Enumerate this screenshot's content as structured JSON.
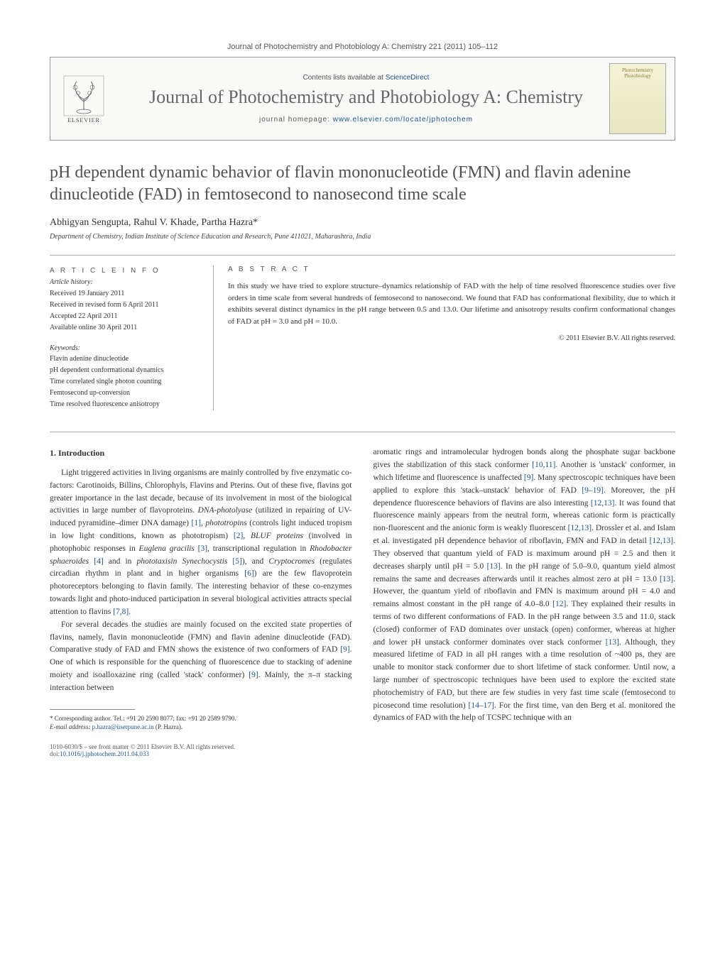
{
  "header": {
    "citation": "Journal of Photochemistry and Photobiology A: Chemistry 221 (2011) 105–112",
    "contents_prefix": "Contents lists available at ",
    "contents_link": "ScienceDirect",
    "journal_name": "Journal of Photochemistry and Photobiology A: Chemistry",
    "homepage_prefix": "journal homepage: ",
    "homepage_url": "www.elsevier.com/locate/jphotochem",
    "publisher": "ELSEVIER",
    "cover_line1": "Photochemistry",
    "cover_line2": "Photobiology"
  },
  "article": {
    "title": "pH dependent dynamic behavior of flavin mononucleotide (FMN) and flavin adenine dinucleotide (FAD) in femtosecond to nanosecond time scale",
    "authors": "Abhigyan Sengupta, Rahul V. Khade, Partha Hazra*",
    "affiliation": "Department of Chemistry, Indian Institute of Science Education and Research, Pune 411021, Maharashtra, India"
  },
  "meta": {
    "info_heading": "A R T I C L E   I N F O",
    "history_label": "Article history:",
    "received": "Received 19 January 2011",
    "revised": "Received in revised form 6 April 2011",
    "accepted": "Accepted 22 April 2011",
    "online": "Available online 30 April 2011",
    "keywords_label": "Keywords:",
    "kw1": "Flavin adenine dinucleotide",
    "kw2": "pH dependent conformational dynamics",
    "kw3": "Time correlated single photon counting",
    "kw4": "Femtosecond up-conversion",
    "kw5": "Time resolved fluorescence anisotropy",
    "abstract_heading": "A B S T R A C T",
    "abstract_text": "In this study we have tried to explore structure–dynamics relationship of FAD with the help of time resolved fluorescence studies over five orders in time scale from several hundreds of femtosecond to nanosecond. We found that FAD has conformational flexibility, due to which it exhibits several distinct dynamics in the pH range between 0.5 and 13.0. Our lifetime and anisotropy results confirm conformational changes of FAD at pH = 3.0 and pH = 10.0.",
    "copyright": "© 2011 Elsevier B.V. All rights reserved."
  },
  "body": {
    "section_heading": "1. Introduction",
    "col1_p1": "Light triggered activities in living organisms are mainly controlled by five enzymatic co-factors: Carotinoids, Billins, Chlorophyls, Flavins and Pterins. Out of these five, flavins got greater importance in the last decade, because of its involvement in most of the biological activities in large number of flavoproteins. DNA-photolyase (utilized in repairing of UV-induced pyramidine–dimer DNA damage) [1], phototropins (controls light induced tropism in low light conditions, known as phototropism) [2], BLUF proteins (involved in photophobic responses in Euglena gracilis [3], transcriptional regulation in Rhodobacter sphaeroides [4] and in phototaxisin Synechocystis [5]), and Cryptocromes (regulates circadian rhythm in plant and in higher organisms [6]) are the few flavoprotein photoreceptors belonging to flavin family. The interesting behavior of these co-enzymes towards light and photo-induced participation in several biological activities attracts special attention to flavins [7,8].",
    "col1_p2": "For several decades the studies are mainly focused on the excited state properties of flavins, namely, flavin mononucleotide (FMN) and flavin adenine dinucleotide (FAD). Comparative study of FAD and FMN shows the existence of two conformers of FAD [9]. One of which is responsible for the quenching of fluorescence due to stacking of adenine moiety and isoalloxazine ring (called 'stack' conformer) [9]. Mainly, the π–π stacking interaction between",
    "col2_p1": "aromatic rings and intramolecular hydrogen bonds along the phosphate sugar backbone gives the stabilization of this stack conformer [10,11]. Another is 'unstack' conformer, in which lifetime and fluorescence is unaffected [9]. Many spectroscopic techniques have been applied to explore this 'stack–unstack' behavior of FAD [9–19]. Moreover, the pH dependence fluorescence behaviors of flavins are also interesting [12,13]. It was found that fluorescence mainly appears from the neutral form, whereas cationic form is practically non-fluorescent and the anionic form is weakly fluorescent [12,13]. Drossler et al. and Islam et al. investigated pH dependence behavior of riboflavin, FMN and FAD in detail [12,13]. They observed that quantum yield of FAD is maximum around pH = 2.5 and then it decreases sharply until pH = 5.0 [13]. In the pH range of 5.0–9.0, quantum yield almost remains the same and decreases afterwards until it reaches almost zero at pH = 13.0 [13]. However, the quantum yield of riboflavin and FMN is maximum around pH = 4.0 and remains almost constant in the pH range of 4.0–8.0 [12]. They explained their results in terms of two different conformations of FAD. In the pH range between 3.5 and 11.0, stack (closed) conformer of FAD dominates over unstack (open) conformer, whereas at higher and lower pH unstack conformer dominates over stack conformer [13]. Although, they measured lifetime of FAD in all pH ranges with a time resolution of ~400 ps, they are unable to monitor stack conformer due to short lifetime of stack conformer. Until now, a large number of spectroscopic techniques have been used to explore the excited state photochemistry of FAD, but there are few studies in very fast time scale (femtosecond to picosecond time resolution) [14–17]. For the first time, van den Berg et al. monitored the dynamics of FAD with the help of TCSPC technique with an"
  },
  "footnote": {
    "corresponding": "* Corresponding author. Tel.: +91 20 2590 8077; fax: +91 20 2589 9790.",
    "email_label": "E-mail address: ",
    "email": "p.hazra@iiserpune.ac.in",
    "email_suffix": " (P. Hazra)."
  },
  "footer": {
    "issn": "1010-6030/$ – see front matter © 2011 Elsevier B.V. All rights reserved.",
    "doi_label": "doi:",
    "doi": "10.1016/j.jphotochem.2011.04.033"
  },
  "colors": {
    "link": "#1a5490",
    "heading": "#505050",
    "rule": "#aaaaaa"
  }
}
